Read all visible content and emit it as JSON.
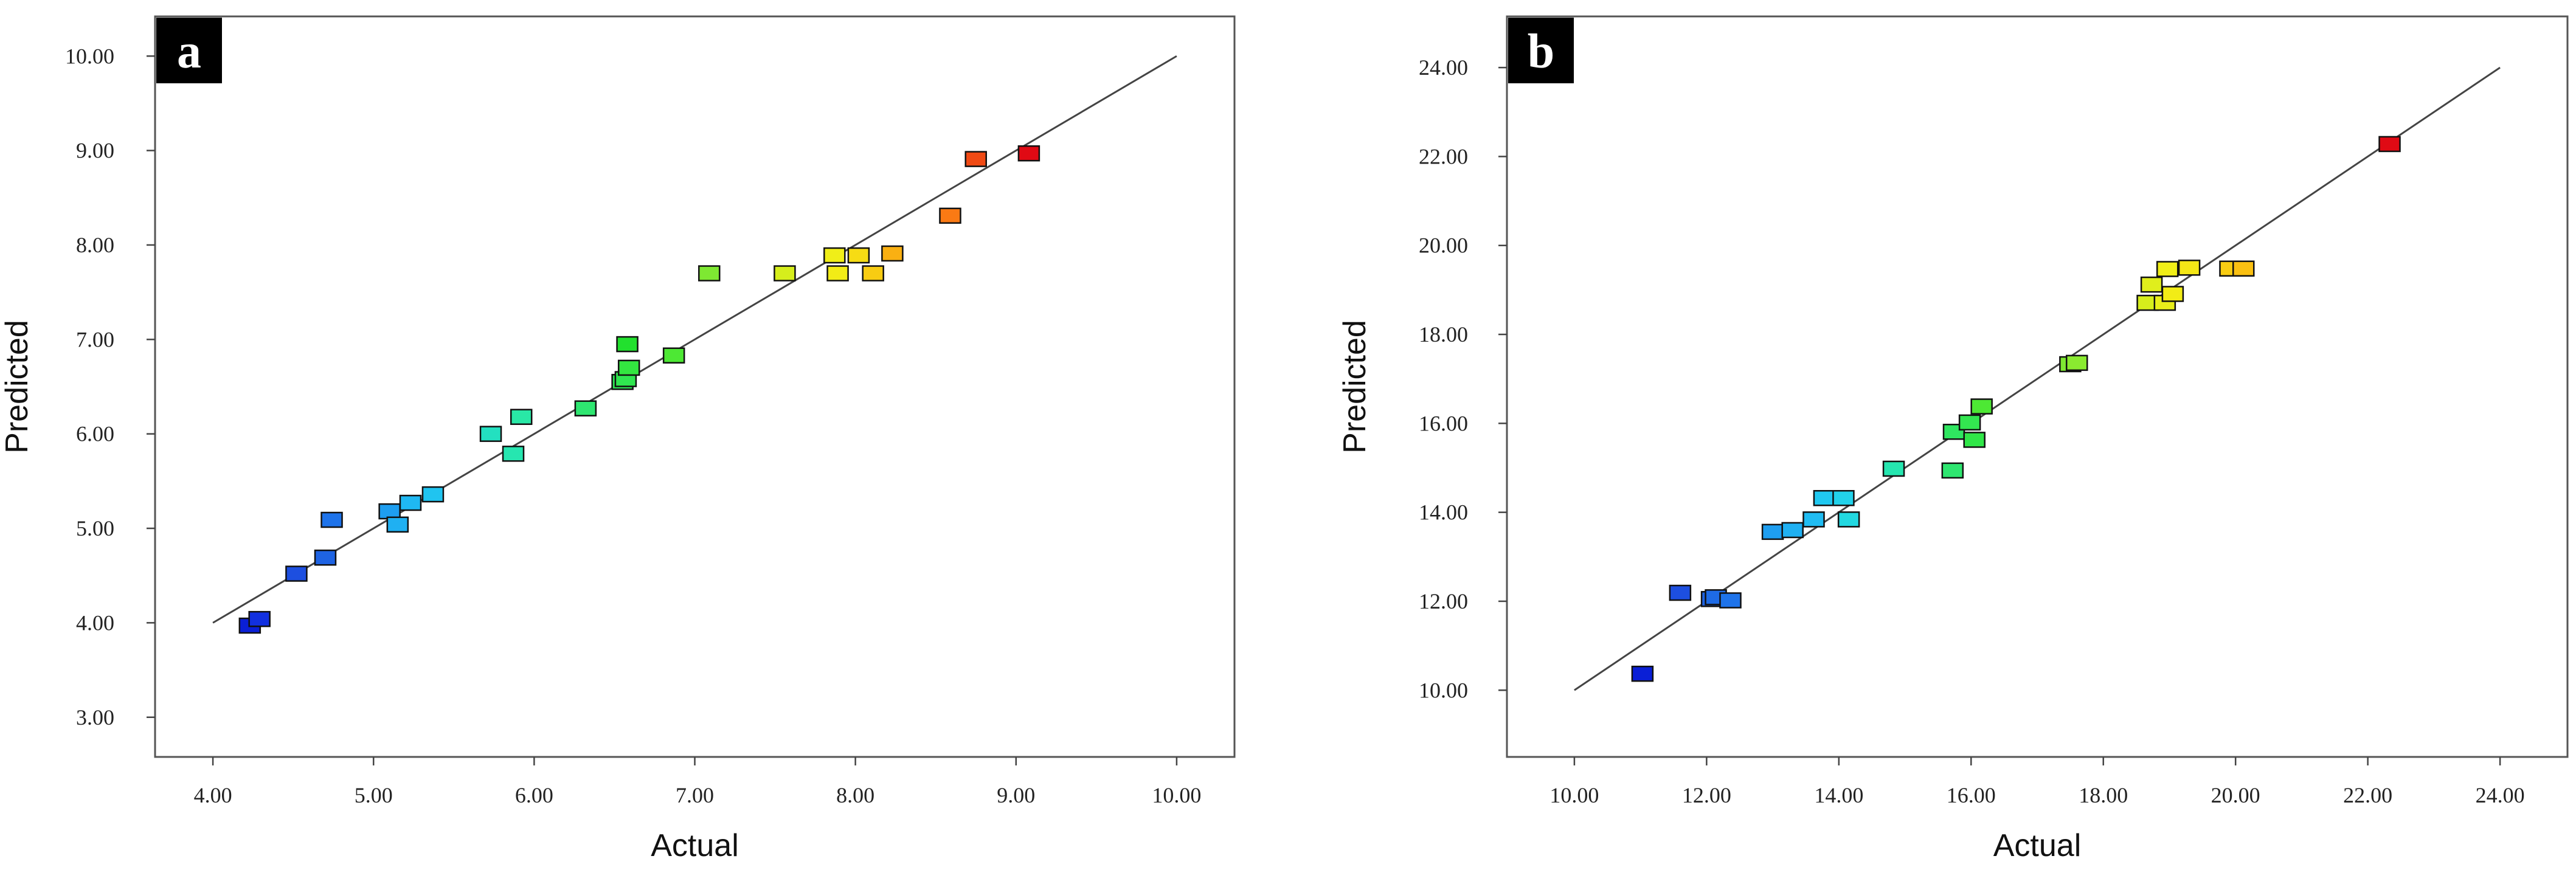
{
  "chart_data": [
    {
      "type": "scatter",
      "panel_label": "a",
      "xlabel": "Actual",
      "ylabel": "Predicted",
      "xlim": [
        3.64,
        10.36
      ],
      "ylim": [
        2.58,
        10.42
      ],
      "xticks": [
        "4.00",
        "5.00",
        "6.00",
        "7.00",
        "8.00",
        "9.00",
        "10.00"
      ],
      "yticks": [
        "3.00",
        "4.00",
        "5.00",
        "6.00",
        "7.00",
        "8.00",
        "9.00",
        "10.00"
      ],
      "reference_line": [
        [
          4.0,
          4.0
        ],
        [
          10.0,
          10.0
        ]
      ],
      "points": [
        {
          "x": 4.23,
          "y": 3.97,
          "color": "#0a1fd6"
        },
        {
          "x": 4.29,
          "y": 4.04,
          "color": "#1230e0"
        },
        {
          "x": 4.52,
          "y": 4.52,
          "color": "#1d4fe0"
        },
        {
          "x": 4.7,
          "y": 4.69,
          "color": "#1e63e3"
        },
        {
          "x": 4.74,
          "y": 5.09,
          "color": "#1e73ea"
        },
        {
          "x": 5.1,
          "y": 5.18,
          "color": "#1e9ef0"
        },
        {
          "x": 5.15,
          "y": 5.04,
          "color": "#1fb0f2"
        },
        {
          "x": 5.23,
          "y": 5.27,
          "color": "#1fb8f2"
        },
        {
          "x": 5.37,
          "y": 5.36,
          "color": "#20c4f0"
        },
        {
          "x": 5.73,
          "y": 6.0,
          "color": "#23e0c0"
        },
        {
          "x": 5.87,
          "y": 5.79,
          "color": "#26e6b0"
        },
        {
          "x": 5.92,
          "y": 6.18,
          "color": "#29e8a6"
        },
        {
          "x": 6.32,
          "y": 6.27,
          "color": "#2ee670"
        },
        {
          "x": 6.55,
          "y": 6.55,
          "color": "#2fe655"
        },
        {
          "x": 6.57,
          "y": 6.58,
          "color": "#30e650"
        },
        {
          "x": 6.58,
          "y": 6.95,
          "color": "#22e02e"
        },
        {
          "x": 6.59,
          "y": 6.7,
          "color": "#33e640"
        },
        {
          "x": 6.87,
          "y": 6.83,
          "color": "#4de834"
        },
        {
          "x": 7.09,
          "y": 7.7,
          "color": "#7ee832"
        },
        {
          "x": 7.56,
          "y": 7.7,
          "color": "#d6ee1c"
        },
        {
          "x": 7.87,
          "y": 7.89,
          "color": "#f0ee18"
        },
        {
          "x": 7.89,
          "y": 7.7,
          "color": "#f2ec16"
        },
        {
          "x": 8.02,
          "y": 7.89,
          "color": "#f6dc14"
        },
        {
          "x": 8.11,
          "y": 7.7,
          "color": "#f8cc12"
        },
        {
          "x": 8.23,
          "y": 7.91,
          "color": "#fab012"
        },
        {
          "x": 8.59,
          "y": 8.31,
          "color": "#fa7a14"
        },
        {
          "x": 8.75,
          "y": 8.91,
          "color": "#f04a14"
        },
        {
          "x": 9.08,
          "y": 8.97,
          "color": "#e00a14"
        }
      ]
    },
    {
      "type": "scatter",
      "panel_label": "b",
      "xlabel": "Actual",
      "ylabel": "Predicted",
      "xlim": [
        8.98,
        25.02
      ],
      "ylim": [
        8.5,
        25.15
      ],
      "xticks": [
        "10.00",
        "12.00",
        "14.00",
        "16.00",
        "18.00",
        "20.00",
        "22.00",
        "24.00"
      ],
      "yticks": [
        "10.00",
        "12.00",
        "14.00",
        "16.00",
        "18.00",
        "20.00",
        "22.00",
        "24.00"
      ],
      "reference_line": [
        [
          10.0,
          10.0
        ],
        [
          24.0,
          24.0
        ]
      ],
      "points": [
        {
          "x": 11.03,
          "y": 10.37,
          "color": "#0a1fd6"
        },
        {
          "x": 11.6,
          "y": 12.19,
          "color": "#1d4fe0"
        },
        {
          "x": 12.08,
          "y": 12.05,
          "color": "#1e63e3"
        },
        {
          "x": 12.14,
          "y": 12.09,
          "color": "#1e6be6"
        },
        {
          "x": 12.36,
          "y": 12.02,
          "color": "#1e73ea"
        },
        {
          "x": 13.0,
          "y": 13.56,
          "color": "#1e9ef0"
        },
        {
          "x": 13.3,
          "y": 13.6,
          "color": "#1fb0f2"
        },
        {
          "x": 13.62,
          "y": 13.84,
          "color": "#20bcf2"
        },
        {
          "x": 13.78,
          "y": 14.32,
          "color": "#20c8f0"
        },
        {
          "x": 14.07,
          "y": 14.32,
          "color": "#22d2ea"
        },
        {
          "x": 14.15,
          "y": 13.84,
          "color": "#22d8e0"
        },
        {
          "x": 14.83,
          "y": 14.98,
          "color": "#26e6b0"
        },
        {
          "x": 15.72,
          "y": 14.94,
          "color": "#2ee670"
        },
        {
          "x": 15.74,
          "y": 15.81,
          "color": "#2fe660"
        },
        {
          "x": 15.98,
          "y": 16.02,
          "color": "#33e650"
        },
        {
          "x": 16.05,
          "y": 15.63,
          "color": "#30e648"
        },
        {
          "x": 16.16,
          "y": 16.38,
          "color": "#4de834"
        },
        {
          "x": 17.5,
          "y": 17.33,
          "color": "#7ee832"
        },
        {
          "x": 17.6,
          "y": 17.36,
          "color": "#8aea30"
        },
        {
          "x": 18.67,
          "y": 18.71,
          "color": "#d6ee1c"
        },
        {
          "x": 18.73,
          "y": 19.12,
          "color": "#e0ee1c"
        },
        {
          "x": 18.93,
          "y": 18.71,
          "color": "#e8ee1a"
        },
        {
          "x": 18.97,
          "y": 19.47,
          "color": "#f0ee18"
        },
        {
          "x": 19.05,
          "y": 18.91,
          "color": "#f2ec16"
        },
        {
          "x": 19.3,
          "y": 19.5,
          "color": "#f4e616"
        },
        {
          "x": 19.92,
          "y": 19.48,
          "color": "#f8cc12"
        },
        {
          "x": 20.12,
          "y": 19.48,
          "color": "#fac012"
        },
        {
          "x": 22.33,
          "y": 22.28,
          "color": "#e00a14"
        }
      ]
    }
  ]
}
